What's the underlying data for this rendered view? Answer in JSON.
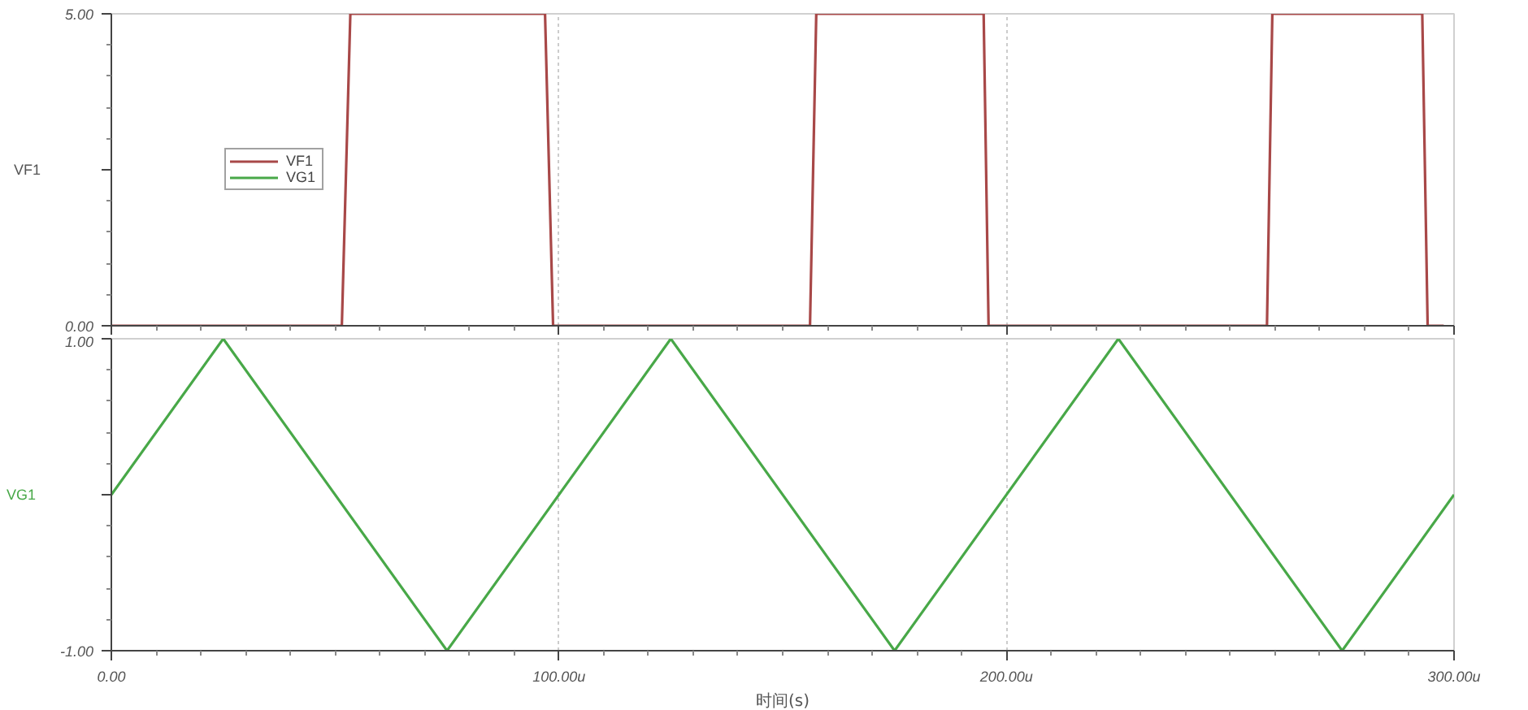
{
  "chart_data": [
    {
      "type": "line",
      "ylabel": "VF1",
      "xlim": [
        0,
        300
      ],
      "ylim": [
        0,
        5
      ],
      "xticks": [
        {
          "value": 0,
          "label": null
        },
        {
          "value": 100,
          "label": null
        },
        {
          "value": 200,
          "label": null
        },
        {
          "value": 300,
          "label": null
        }
      ],
      "yticks": [
        {
          "value": 0,
          "label": "0.00"
        },
        {
          "value": 2.5,
          "label": null
        },
        {
          "value": 5,
          "label": "5.00"
        }
      ],
      "tick_labels": "y",
      "grid": "x",
      "legend": "left",
      "line_style": "solid",
      "marker": "none",
      "series": [
        {
          "name": "VF1",
          "color": "#a84848",
          "x": [
            0,
            51.5,
            53.4,
            96.9,
            98.7,
            156.1,
            157.5,
            194.9,
            196.0,
            258.2,
            259.4,
            292.9,
            294.1,
            297.7
          ],
          "values": [
            0,
            0,
            5,
            5,
            0,
            0,
            5,
            5,
            0,
            0,
            5,
            5,
            0,
            0
          ]
        }
      ]
    },
    {
      "type": "line",
      "ylabel": "VG1",
      "xlabel": "时间(s)",
      "xlim": [
        0,
        300
      ],
      "ylim": [
        -1,
        1
      ],
      "xticks": [
        {
          "value": 0,
          "label": "0.00"
        },
        {
          "value": 100,
          "label": "100.00u"
        },
        {
          "value": 200,
          "label": "200.00u"
        },
        {
          "value": 300,
          "label": "300.00u"
        }
      ],
      "yticks": [
        {
          "value": -1,
          "label": "-1.00"
        },
        {
          "value": 0,
          "label": null
        },
        {
          "value": 1,
          "label": "1.00"
        }
      ],
      "grid": "x",
      "legend": "left",
      "line_style": "solid",
      "marker": "none",
      "series": [
        {
          "name": "VG1",
          "color": "#48a848",
          "x": [
            0,
            25,
            75,
            125,
            175,
            225,
            275,
            300
          ],
          "values": [
            0,
            1,
            -1,
            1,
            -1,
            1,
            -1,
            0
          ]
        }
      ]
    }
  ]
}
